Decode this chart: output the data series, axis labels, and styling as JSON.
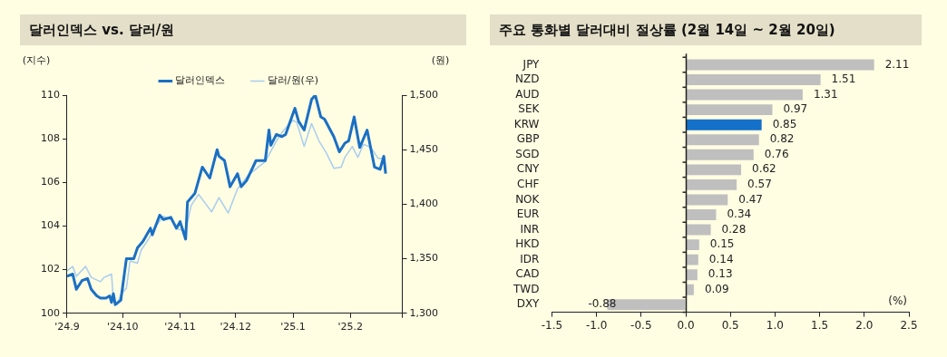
{
  "chart_data": [
    {
      "type": "line",
      "title": "달러인덱스 vs. 달러/원",
      "ylabel": "(지수)",
      "y2label": "(원)",
      "legend": "top",
      "series": [
        {
          "name": "달러인덱스",
          "color": "#1a6fc4",
          "x": [
            "2024-09-01",
            "2024-09-04",
            "2024-09-06",
            "2024-09-09",
            "2024-09-12",
            "2024-09-14",
            "2024-09-17",
            "2024-09-19",
            "2024-09-22",
            "2024-09-24",
            "2024-09-25",
            "2024-09-26",
            "2024-09-27",
            "2024-09-30",
            "2024-10-03",
            "2024-10-07",
            "2024-10-09",
            "2024-10-12",
            "2024-10-16",
            "2024-10-17",
            "2024-10-21",
            "2024-10-23",
            "2024-10-27",
            "2024-10-30",
            "2024-11-01",
            "2024-11-04",
            "2024-11-05",
            "2024-11-09",
            "2024-11-13",
            "2024-11-17",
            "2024-11-21",
            "2024-11-22",
            "2024-11-25",
            "2024-11-28",
            "2024-12-02",
            "2024-12-04",
            "2024-12-07",
            "2024-12-12",
            "2024-12-17",
            "2024-12-19",
            "2024-12-20",
            "2024-12-23",
            "2024-12-26",
            "2024-12-28",
            "2025-01-02",
            "2025-01-04",
            "2025-01-07",
            "2025-01-11",
            "2025-01-13",
            "2025-01-16",
            "2025-01-18",
            "2025-01-23",
            "2025-01-26",
            "2025-01-29",
            "2025-01-31",
            "2025-02-03",
            "2025-02-06",
            "2025-02-10",
            "2025-02-14",
            "2025-02-17",
            "2025-02-19",
            "2025-02-20"
          ],
          "values": [
            101.7,
            101.8,
            101.1,
            101.5,
            101.6,
            101.1,
            100.8,
            100.7,
            100.7,
            100.8,
            100.5,
            100.9,
            100.4,
            100.6,
            102.5,
            102.5,
            103.0,
            103.3,
            103.9,
            103.6,
            104.5,
            104.3,
            104.4,
            103.9,
            104.2,
            103.4,
            105.1,
            105.5,
            106.7,
            106.2,
            107.5,
            107.2,
            107.0,
            105.8,
            106.4,
            105.8,
            106.1,
            107.0,
            107.0,
            108.4,
            107.7,
            108.2,
            108.1,
            108.2,
            109.4,
            108.8,
            108.4,
            109.8,
            110.0,
            109.0,
            108.9,
            108.1,
            107.4,
            107.8,
            107.9,
            109.0,
            107.6,
            108.4,
            106.7,
            106.6,
            107.2,
            106.4
          ]
        },
        {
          "name": "달러/원(우)",
          "color": "#a8cdf0",
          "axis": "y2",
          "x": [
            "2024-09-01",
            "2024-09-04",
            "2024-09-06",
            "2024-09-11",
            "2024-09-14",
            "2024-09-19",
            "2024-09-21",
            "2024-09-25",
            "2024-09-26",
            "2024-09-28",
            "2024-09-30",
            "2024-10-03",
            "2024-10-05",
            "2024-10-09",
            "2024-10-11",
            "2024-10-15",
            "2024-10-19",
            "2024-10-23",
            "2024-10-27",
            "2024-10-31",
            "2024-11-04",
            "2024-11-07",
            "2024-11-11",
            "2024-11-15",
            "2024-11-18",
            "2024-11-22",
            "2024-11-27",
            "2024-12-02",
            "2024-12-08",
            "2024-12-17",
            "2024-12-23",
            "2024-12-27",
            "2025-01-01",
            "2025-01-03",
            "2025-01-07",
            "2025-01-11",
            "2025-01-15",
            "2025-01-19",
            "2025-01-23",
            "2025-01-27",
            "2025-01-29",
            "2025-02-02",
            "2025-02-05",
            "2025-02-08",
            "2025-02-12",
            "2025-02-16",
            "2025-02-20"
          ],
          "values": [
            1339,
            1343,
            1334,
            1343,
            1333,
            1329,
            1333,
            1336,
            1312,
            1308,
            1317,
            1323,
            1348,
            1346,
            1358,
            1368,
            1380,
            1389,
            1386,
            1377,
            1376,
            1399,
            1409,
            1400,
            1393,
            1406,
            1392,
            1414,
            1427,
            1439,
            1458,
            1468,
            1477,
            1475,
            1453,
            1474,
            1458,
            1447,
            1433,
            1434,
            1443,
            1453,
            1443,
            1455,
            1452,
            1442,
            1442
          ]
        }
      ],
      "xlim": [
        "2024-09-01",
        "2025-03-01"
      ],
      "xticks": [
        {
          "value": "2024-09-01",
          "label": "'24.9"
        },
        {
          "value": "2024-10-01",
          "label": "'24.10"
        },
        {
          "value": "2024-11-01",
          "label": "'24.11"
        },
        {
          "value": "2024-12-01",
          "label": "'24.12"
        },
        {
          "value": "2025-01-01",
          "label": "'25.1"
        },
        {
          "value": "2025-02-01",
          "label": "'25.2"
        },
        {
          "value": "2025-03-01",
          "label": null
        }
      ],
      "ylim": [
        100,
        110
      ],
      "yticks": [
        100,
        102,
        104,
        106,
        108,
        110
      ],
      "y2lim": [
        1300,
        1500
      ],
      "y2ticks": [
        {
          "value": 1300,
          "label": "1,300"
        },
        {
          "value": 1350,
          "label": "1,350"
        },
        {
          "value": 1400,
          "label": "1,400"
        },
        {
          "value": 1450,
          "label": "1,450"
        },
        {
          "value": 1500,
          "label": "1,500"
        }
      ]
    },
    {
      "type": "bar",
      "orientation": "horizontal",
      "title": "주요 통화별 달러대비 절상률 (2월 14일 ~ 2월 20일)",
      "data_labels": true,
      "annotations": [
        "(%)"
      ],
      "categories": [
        "JPY",
        "NZD",
        "AUD",
        "SEK",
        "KRW",
        "GBP",
        "SGD",
        "CNY",
        "CHF",
        "NOK",
        "EUR",
        "INR",
        "HKD",
        "IDR",
        "CAD",
        "TWD",
        "DXY"
      ],
      "values": [
        2.11,
        1.51,
        1.31,
        0.97,
        0.85,
        0.82,
        0.76,
        0.62,
        0.57,
        0.47,
        0.34,
        0.28,
        0.15,
        0.14,
        0.13,
        0.09,
        -0.88
      ],
      "colors": [
        "#bfbfbf",
        "#bfbfbf",
        "#bfbfbf",
        "#bfbfbf",
        "#1470c8",
        "#bfbfbf",
        "#bfbfbf",
        "#bfbfbf",
        "#bfbfbf",
        "#bfbfbf",
        "#bfbfbf",
        "#bfbfbf",
        "#bfbfbf",
        "#bfbfbf",
        "#bfbfbf",
        "#bfbfbf",
        "#bfbfbf"
      ],
      "xlim": [
        -1.5,
        2.5
      ],
      "xticks": [
        {
          "value": -1.5,
          "label": "-1.5"
        },
        {
          "value": -1,
          "label": "-1.0"
        },
        {
          "value": -0.5,
          "label": "-0.5"
        },
        {
          "value": 0,
          "label": "0.0"
        },
        {
          "value": 0.5,
          "label": "0.5"
        },
        {
          "value": 1,
          "label": "1.0"
        },
        {
          "value": 1.5,
          "label": "1.5"
        },
        {
          "value": 2,
          "label": "2.0"
        },
        {
          "value": 2.5,
          "label": "2.5"
        }
      ]
    }
  ]
}
